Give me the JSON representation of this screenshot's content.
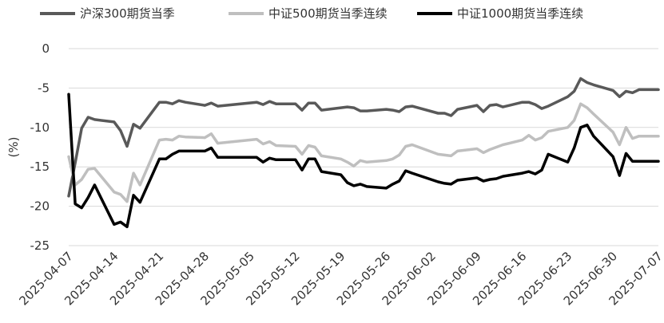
{
  "chart_data": {
    "type": "line",
    "title": "",
    "xlabel": "",
    "ylabel": "(%)",
    "ylim": [
      -25,
      0
    ],
    "yticks": [
      0,
      -5,
      -10,
      -15,
      -20,
      -25
    ],
    "xlim": [
      "2025-04-07",
      "2025-07-07"
    ],
    "xticks": [
      "2025-04-07",
      "2025-04-14",
      "2025-04-21",
      "2025-04-28",
      "2025-05-05",
      "2025-05-12",
      "2025-05-19",
      "2025-05-26",
      "2025-06-02",
      "2025-06-09",
      "2025-06-16",
      "2025-06-23",
      "2025-06-30",
      "2025-07-07"
    ],
    "grid": "horizontal",
    "legend": "top",
    "series": [
      {
        "name": "沪深300期货当季",
        "color": "#595959",
        "points": [
          [
            "2025-04-07",
            -18.7
          ],
          [
            "2025-04-08",
            -14.5
          ],
          [
            "2025-04-09",
            -10.1
          ],
          [
            "2025-04-10",
            -8.7
          ],
          [
            "2025-04-11",
            -9.0
          ],
          [
            "2025-04-14",
            -9.3
          ],
          [
            "2025-04-15",
            -10.4
          ],
          [
            "2025-04-16",
            -12.4
          ],
          [
            "2025-04-17",
            -9.6
          ],
          [
            "2025-04-18",
            -10.1
          ],
          [
            "2025-04-21",
            -6.8
          ],
          [
            "2025-04-22",
            -6.8
          ],
          [
            "2025-04-23",
            -7.0
          ],
          [
            "2025-04-24",
            -6.6
          ],
          [
            "2025-04-25",
            -6.8
          ],
          [
            "2025-04-28",
            -7.2
          ],
          [
            "2025-04-29",
            -6.9
          ],
          [
            "2025-04-30",
            -7.3
          ],
          [
            "2025-05-06",
            -6.8
          ],
          [
            "2025-05-07",
            -7.1
          ],
          [
            "2025-05-08",
            -6.7
          ],
          [
            "2025-05-09",
            -7.0
          ],
          [
            "2025-05-12",
            -7.0
          ],
          [
            "2025-05-13",
            -7.8
          ],
          [
            "2025-05-14",
            -6.9
          ],
          [
            "2025-05-15",
            -6.9
          ],
          [
            "2025-05-16",
            -7.8
          ],
          [
            "2025-05-19",
            -7.5
          ],
          [
            "2025-05-20",
            -7.4
          ],
          [
            "2025-05-21",
            -7.5
          ],
          [
            "2025-05-22",
            -7.9
          ],
          [
            "2025-05-23",
            -7.9
          ],
          [
            "2025-05-26",
            -7.7
          ],
          [
            "2025-05-27",
            -7.8
          ],
          [
            "2025-05-28",
            -8.0
          ],
          [
            "2025-05-29",
            -7.4
          ],
          [
            "2025-05-30",
            -7.3
          ],
          [
            "2025-06-03",
            -8.2
          ],
          [
            "2025-06-04",
            -8.2
          ],
          [
            "2025-06-05",
            -8.5
          ],
          [
            "2025-06-06",
            -7.7
          ],
          [
            "2025-06-09",
            -7.2
          ],
          [
            "2025-06-10",
            -8.0
          ],
          [
            "2025-06-11",
            -7.2
          ],
          [
            "2025-06-12",
            -7.1
          ],
          [
            "2025-06-13",
            -7.4
          ],
          [
            "2025-06-16",
            -6.8
          ],
          [
            "2025-06-17",
            -6.8
          ],
          [
            "2025-06-18",
            -7.1
          ],
          [
            "2025-06-19",
            -7.6
          ],
          [
            "2025-06-20",
            -7.3
          ],
          [
            "2025-06-23",
            -6.1
          ],
          [
            "2025-06-24",
            -5.4
          ],
          [
            "2025-06-25",
            -3.8
          ],
          [
            "2025-06-26",
            -4.3
          ],
          [
            "2025-06-27",
            -4.6
          ],
          [
            "2025-06-30",
            -5.3
          ],
          [
            "2025-07-01",
            -6.1
          ],
          [
            "2025-07-02",
            -5.4
          ],
          [
            "2025-07-03",
            -5.6
          ],
          [
            "2025-07-04",
            -5.2
          ],
          [
            "2025-07-07",
            -5.2
          ]
        ]
      },
      {
        "name": "中证500期货当季连续",
        "color": "#bfbfbf",
        "points": [
          [
            "2025-04-07",
            -13.7
          ],
          [
            "2025-04-08",
            -17.3
          ],
          [
            "2025-04-09",
            -16.6
          ],
          [
            "2025-04-10",
            -15.3
          ],
          [
            "2025-04-11",
            -15.2
          ],
          [
            "2025-04-14",
            -18.2
          ],
          [
            "2025-04-15",
            -18.5
          ],
          [
            "2025-04-16",
            -19.4
          ],
          [
            "2025-04-17",
            -15.8
          ],
          [
            "2025-04-18",
            -17.3
          ],
          [
            "2025-04-21",
            -11.6
          ],
          [
            "2025-04-22",
            -11.5
          ],
          [
            "2025-04-23",
            -11.6
          ],
          [
            "2025-04-24",
            -11.1
          ],
          [
            "2025-04-25",
            -11.2
          ],
          [
            "2025-04-28",
            -11.3
          ],
          [
            "2025-04-29",
            -10.8
          ],
          [
            "2025-04-30",
            -12.0
          ],
          [
            "2025-05-06",
            -11.5
          ],
          [
            "2025-05-07",
            -12.1
          ],
          [
            "2025-05-08",
            -11.8
          ],
          [
            "2025-05-09",
            -12.3
          ],
          [
            "2025-05-12",
            -12.4
          ],
          [
            "2025-05-13",
            -13.4
          ],
          [
            "2025-05-14",
            -12.3
          ],
          [
            "2025-05-15",
            -12.5
          ],
          [
            "2025-05-16",
            -13.6
          ],
          [
            "2025-05-19",
            -14.0
          ],
          [
            "2025-05-20",
            -14.4
          ],
          [
            "2025-05-21",
            -14.9
          ],
          [
            "2025-05-22",
            -14.2
          ],
          [
            "2025-05-23",
            -14.4
          ],
          [
            "2025-05-26",
            -14.2
          ],
          [
            "2025-05-27",
            -14.0
          ],
          [
            "2025-05-28",
            -13.5
          ],
          [
            "2025-05-29",
            -12.4
          ],
          [
            "2025-05-30",
            -12.2
          ],
          [
            "2025-06-03",
            -13.4
          ],
          [
            "2025-06-04",
            -13.5
          ],
          [
            "2025-06-05",
            -13.6
          ],
          [
            "2025-06-06",
            -13.0
          ],
          [
            "2025-06-09",
            -12.7
          ],
          [
            "2025-06-10",
            -13.2
          ],
          [
            "2025-06-11",
            -12.8
          ],
          [
            "2025-06-12",
            -12.5
          ],
          [
            "2025-06-13",
            -12.2
          ],
          [
            "2025-06-16",
            -11.6
          ],
          [
            "2025-06-17",
            -11.0
          ],
          [
            "2025-06-18",
            -11.6
          ],
          [
            "2025-06-19",
            -11.3
          ],
          [
            "2025-06-20",
            -10.5
          ],
          [
            "2025-06-23",
            -10.0
          ],
          [
            "2025-06-24",
            -9.1
          ],
          [
            "2025-06-25",
            -7.0
          ],
          [
            "2025-06-26",
            -7.5
          ],
          [
            "2025-06-27",
            -8.3
          ],
          [
            "2025-06-30",
            -10.6
          ],
          [
            "2025-07-01",
            -12.2
          ],
          [
            "2025-07-02",
            -10.0
          ],
          [
            "2025-07-03",
            -11.4
          ],
          [
            "2025-07-04",
            -11.1
          ],
          [
            "2025-07-07",
            -11.1
          ]
        ]
      },
      {
        "name": "中证1000期货当季连续",
        "color": "#000000",
        "points": [
          [
            "2025-04-07",
            -5.8
          ],
          [
            "2025-04-08",
            -19.7
          ],
          [
            "2025-04-09",
            -20.2
          ],
          [
            "2025-04-10",
            -18.9
          ],
          [
            "2025-04-11",
            -17.3
          ],
          [
            "2025-04-14",
            -22.3
          ],
          [
            "2025-04-15",
            -22.0
          ],
          [
            "2025-04-16",
            -22.6
          ],
          [
            "2025-04-17",
            -18.6
          ],
          [
            "2025-04-18",
            -19.5
          ],
          [
            "2025-04-21",
            -14.0
          ],
          [
            "2025-04-22",
            -14.0
          ],
          [
            "2025-04-23",
            -13.4
          ],
          [
            "2025-04-24",
            -13.0
          ],
          [
            "2025-04-25",
            -13.0
          ],
          [
            "2025-04-28",
            -13.0
          ],
          [
            "2025-04-29",
            -12.6
          ],
          [
            "2025-04-30",
            -13.8
          ],
          [
            "2025-05-06",
            -13.8
          ],
          [
            "2025-05-07",
            -14.4
          ],
          [
            "2025-05-08",
            -13.9
          ],
          [
            "2025-05-09",
            -14.1
          ],
          [
            "2025-05-12",
            -14.1
          ],
          [
            "2025-05-13",
            -15.4
          ],
          [
            "2025-05-14",
            -14.0
          ],
          [
            "2025-05-15",
            -14.0
          ],
          [
            "2025-05-16",
            -15.6
          ],
          [
            "2025-05-19",
            -16.0
          ],
          [
            "2025-05-20",
            -17.0
          ],
          [
            "2025-05-21",
            -17.4
          ],
          [
            "2025-05-22",
            -17.2
          ],
          [
            "2025-05-23",
            -17.5
          ],
          [
            "2025-05-26",
            -17.7
          ],
          [
            "2025-05-27",
            -17.2
          ],
          [
            "2025-05-28",
            -16.8
          ],
          [
            "2025-05-29",
            -15.5
          ],
          [
            "2025-05-30",
            -15.8
          ],
          [
            "2025-06-03",
            -16.9
          ],
          [
            "2025-06-04",
            -17.1
          ],
          [
            "2025-06-05",
            -17.2
          ],
          [
            "2025-06-06",
            -16.7
          ],
          [
            "2025-06-09",
            -16.4
          ],
          [
            "2025-06-10",
            -16.8
          ],
          [
            "2025-06-11",
            -16.6
          ],
          [
            "2025-06-12",
            -16.5
          ],
          [
            "2025-06-13",
            -16.2
          ],
          [
            "2025-06-16",
            -15.8
          ],
          [
            "2025-06-17",
            -15.6
          ],
          [
            "2025-06-18",
            -15.9
          ],
          [
            "2025-06-19",
            -15.4
          ],
          [
            "2025-06-20",
            -13.4
          ],
          [
            "2025-06-23",
            -14.4
          ],
          [
            "2025-06-24",
            -12.6
          ],
          [
            "2025-06-25",
            -10.0
          ],
          [
            "2025-06-26",
            -9.7
          ],
          [
            "2025-06-27",
            -11.1
          ],
          [
            "2025-06-30",
            -13.7
          ],
          [
            "2025-07-01",
            -16.1
          ],
          [
            "2025-07-02",
            -13.3
          ],
          [
            "2025-07-03",
            -14.3
          ],
          [
            "2025-07-04",
            -14.3
          ],
          [
            "2025-07-07",
            -14.3
          ]
        ]
      }
    ]
  }
}
